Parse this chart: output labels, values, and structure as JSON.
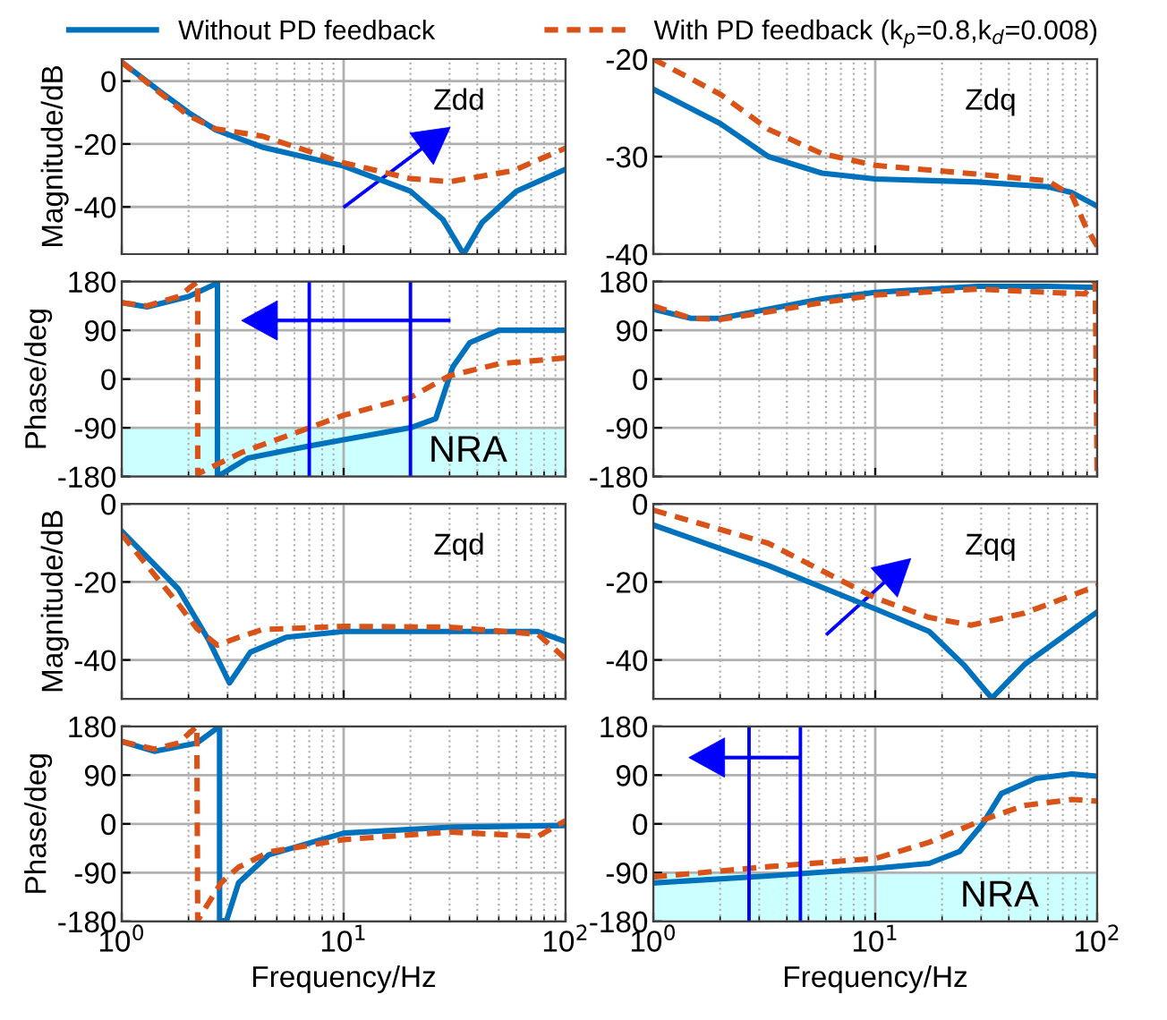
{
  "chart_data": [
    {
      "type": "line",
      "log": "x",
      "xlim": [
        1,
        100
      ],
      "xticks": [
        {
          "value": 1,
          "label": null
        },
        {
          "value": 10,
          "label": null
        },
        {
          "value": 100,
          "label": null
        }
      ],
      "ylim": [
        -55,
        7
      ],
      "yticks": [
        0,
        -20,
        -40
      ],
      "ylabel": "Magnitude/dB",
      "grid": true,
      "tick_labels": "y",
      "legend": "top",
      "annotations": [
        "Zdd"
      ],
      "series": [
        {
          "name": "Without PD feedback",
          "color": "#0072bd",
          "line_style": "solid",
          "x": [
            1,
            1.5,
            2,
            2.65,
            4.3,
            10,
            20,
            28,
            34.7,
            42,
            60,
            100
          ],
          "values": [
            6,
            -3.5,
            -10,
            -15.5,
            -21,
            -27,
            -35,
            -44,
            -55,
            -45,
            -35,
            -28
          ]
        },
        {
          "name": "With PD feedback (k$_{p}$=0.8,k$_{d}$=0.008)",
          "color": "#d95319",
          "line_style": "dashed",
          "x": [
            1,
            1.5,
            2,
            2.65,
            4.3,
            10,
            20,
            30,
            58,
            100
          ],
          "values": [
            6,
            -4,
            -11,
            -15.2,
            -17.5,
            -26,
            -31,
            -32,
            -28.5,
            -21.3
          ]
        }
      ]
    },
    {
      "type": "line",
      "log": "x",
      "xlim": [
        1,
        100
      ],
      "xticks": [
        {
          "value": 1,
          "label": null
        },
        {
          "value": 10,
          "label": null
        },
        {
          "value": 100,
          "label": null
        }
      ],
      "ylim": [
        -40,
        -20
      ],
      "yticks": [
        -20,
        -30,
        -40
      ],
      "grid": true,
      "tick_labels": "y",
      "annotations": [
        "Zdq"
      ],
      "series": [
        {
          "color": "#0072bd",
          "line_style": "solid",
          "x": [
            1,
            2,
            3.3,
            5.75,
            10,
            28.8,
            60,
            77,
            100
          ],
          "values": [
            -23.1,
            -26.6,
            -30,
            -31.7,
            -32.3,
            -32.6,
            -33.1,
            -33.7,
            -35.1
          ]
        },
        {
          "color": "#d95319",
          "line_style": "dashed",
          "x": [
            1,
            2,
            3.3,
            5.75,
            10,
            28.8,
            60,
            77,
            88,
            100
          ],
          "values": [
            -20,
            -23.6,
            -27.2,
            -29.7,
            -30.9,
            -31.8,
            -32.5,
            -34,
            -37,
            -39.2
          ]
        }
      ]
    },
    {
      "type": "line",
      "log": "x",
      "xlim": [
        1,
        100
      ],
      "xticks": [
        {
          "value": 1,
          "label": null
        },
        {
          "value": 10,
          "label": null
        },
        {
          "value": 100,
          "label": null
        }
      ],
      "ylim": [
        -180,
        180
      ],
      "yticks": [
        -180,
        -90,
        0,
        90,
        180
      ],
      "ylabel": "Phase/deg",
      "grid": true,
      "tick_labels": "y",
      "bands": [
        {
          "axis": "y",
          "from": -180,
          "to": -90,
          "label": "NRA",
          "color": "#ccffff"
        }
      ],
      "ref_lines": [
        {
          "axis": "x",
          "value": 7,
          "color": "#0000ff"
        },
        {
          "axis": "x",
          "value": 20,
          "color": "#0000ff"
        }
      ],
      "series": [
        {
          "color": "#0072bd",
          "line_style": "solid",
          "x": [
            1,
            1.3,
            2,
            2.6,
            2.7,
            2.7,
            3.7,
            6.9,
            10,
            20,
            26,
            31,
            37,
            50,
            100
          ],
          "values": [
            141,
            133,
            152,
            174,
            178,
            -180,
            -146,
            -124,
            -112,
            -90,
            -73,
            22,
            67,
            90,
            90
          ]
        },
        {
          "color": "#d95319",
          "line_style": "dashed",
          "x": [
            1,
            1.3,
            1.8,
            2.2,
            2.2,
            3.5,
            7,
            10,
            20,
            30,
            50,
            100
          ],
          "values": [
            141,
            135,
            152,
            180,
            -175,
            -135,
            -90,
            -67,
            -34,
            6,
            28,
            39
          ]
        }
      ]
    },
    {
      "type": "line",
      "log": "x",
      "xlim": [
        1,
        100
      ],
      "xticks": [
        {
          "value": 1,
          "label": null
        },
        {
          "value": 10,
          "label": null
        },
        {
          "value": 100,
          "label": null
        }
      ],
      "ylim": [
        -180,
        180
      ],
      "yticks": [
        -180,
        -90,
        0,
        90,
        180
      ],
      "grid": true,
      "tick_labels": "y",
      "series": [
        {
          "color": "#0072bd",
          "line_style": "solid",
          "x": [
            1,
            1.48,
            2,
            3.3,
            5.75,
            10,
            28.8,
            60,
            100
          ],
          "values": [
            129,
            112,
            112,
            129,
            148,
            160,
            171,
            171,
            169
          ]
        },
        {
          "color": "#d95319",
          "line_style": "dashed",
          "x": [
            1,
            1.48,
            2,
            3.3,
            5.75,
            10,
            28.8,
            60,
            88,
            98,
            100
          ],
          "values": [
            135,
            112,
            110,
            124,
            141,
            155,
            166,
            160,
            157,
            180,
            -180
          ]
        }
      ]
    },
    {
      "type": "line",
      "log": "x",
      "xlim": [
        1,
        100
      ],
      "xticks": [
        {
          "value": 1,
          "label": null
        },
        {
          "value": 10,
          "label": null
        },
        {
          "value": 100,
          "label": null
        }
      ],
      "ylim": [
        -50,
        0
      ],
      "yticks": [
        0,
        -20,
        -40
      ],
      "ylabel": "Magnitude/dB",
      "grid": true,
      "tick_labels": "y",
      "annotations": [
        "Zqd"
      ],
      "series": [
        {
          "color": "#0072bd",
          "line_style": "solid",
          "x": [
            1,
            1.8,
            2.47,
            3.06,
            3.8,
            5.5,
            10,
            30,
            75,
            100
          ],
          "values": [
            -7,
            -21.8,
            -35,
            -45.9,
            -38,
            -34.2,
            -32.7,
            -32.7,
            -32.7,
            -35.3
          ]
        },
        {
          "color": "#d95319",
          "line_style": "dashed",
          "x": [
            1,
            1.8,
            2.18,
            2.7,
            3.36,
            4.3,
            10,
            30,
            75,
            100
          ],
          "values": [
            -7.8,
            -25.7,
            -31.9,
            -36.2,
            -34.2,
            -32.2,
            -31.4,
            -31.6,
            -33.4,
            -39.7
          ]
        }
      ]
    },
    {
      "type": "line",
      "log": "x",
      "xlim": [
        1,
        100
      ],
      "xticks": [
        {
          "value": 1,
          "label": null
        },
        {
          "value": 10,
          "label": null
        },
        {
          "value": 100,
          "label": null
        }
      ],
      "ylim": [
        -50,
        0
      ],
      "yticks": [
        0,
        -20,
        -40
      ],
      "grid": true,
      "tick_labels": "y",
      "annotations": [
        "Zqq"
      ],
      "series": [
        {
          "color": "#0072bd",
          "line_style": "solid",
          "x": [
            1,
            3.3,
            10,
            17.5,
            25,
            33.5,
            47,
            100
          ],
          "values": [
            -5.4,
            -15.8,
            -26.9,
            -32.7,
            -41.2,
            -49.8,
            -41.2,
            -27.7
          ]
        },
        {
          "color": "#d95319",
          "line_style": "dashed",
          "x": [
            1,
            3.3,
            10,
            17.5,
            27,
            47,
            100
          ],
          "values": [
            -1.6,
            -10.1,
            -24.1,
            -29.1,
            -31.1,
            -28,
            -21
          ]
        }
      ]
    },
    {
      "type": "line",
      "log": "x",
      "xlim": [
        1,
        100
      ],
      "xticks": [
        {
          "value": 1,
          "label": "10$^{0}$"
        },
        {
          "value": 10,
          "label": "10$^{1}$"
        },
        {
          "value": 100,
          "label": "10$^{2}$"
        }
      ],
      "ylim": [
        -180,
        180
      ],
      "yticks": [
        -180,
        -90,
        0,
        90,
        180
      ],
      "ylabel": "Phase/deg",
      "xlabel": "Frequency/Hz",
      "grid": true,
      "series": [
        {
          "color": "#0072bd",
          "line_style": "solid",
          "x": [
            1,
            1.4,
            2.18,
            2.76,
            2.76,
            2.97,
            3.36,
            4.6,
            10,
            30,
            100
          ],
          "values": [
            152,
            134,
            149,
            180,
            -180,
            -178,
            -109,
            -57,
            -17,
            -6,
            -3
          ]
        },
        {
          "color": "#d95319",
          "line_style": "dashed",
          "x": [
            1,
            1.4,
            1.8,
            2.18,
            2.2,
            2.8,
            3.36,
            4.6,
            10,
            30,
            75,
            100
          ],
          "values": [
            152,
            138,
            149,
            180,
            -178,
            -109,
            -80,
            -52,
            -29,
            -15,
            -23,
            6
          ]
        }
      ]
    },
    {
      "type": "line",
      "log": "x",
      "xlim": [
        1,
        100
      ],
      "xticks": [
        {
          "value": 1,
          "label": "10$^{0}$"
        },
        {
          "value": 10,
          "label": "10$^{1}$"
        },
        {
          "value": 100,
          "label": "10$^{2}$"
        }
      ],
      "ylim": [
        -180,
        180
      ],
      "yticks": [
        -180,
        -90,
        0,
        90,
        180
      ],
      "xlabel": "Frequency/Hz",
      "grid": true,
      "bands": [
        {
          "axis": "y",
          "from": -180,
          "to": -90,
          "label": "NRA",
          "color": "#ccffff"
        }
      ],
      "ref_lines": [
        {
          "axis": "x",
          "value": 2.7,
          "color": "#0000ff"
        },
        {
          "axis": "x",
          "value": 4.6,
          "color": "#0000ff"
        }
      ],
      "series": [
        {
          "color": "#0072bd",
          "line_style": "solid",
          "x": [
            1,
            3.3,
            10,
            17.5,
            24,
            30.5,
            37,
            53,
            77,
            100
          ],
          "values": [
            -109,
            -96,
            -82,
            -73,
            -51,
            0,
            56,
            84,
            92,
            88
          ]
        },
        {
          "color": "#d95319",
          "line_style": "dashed",
          "x": [
            1,
            3.3,
            10,
            17.5,
            30,
            47,
            77,
            100
          ],
          "values": [
            -98,
            -79,
            -64,
            -34,
            6,
            34,
            45,
            42
          ]
        }
      ]
    }
  ]
}
